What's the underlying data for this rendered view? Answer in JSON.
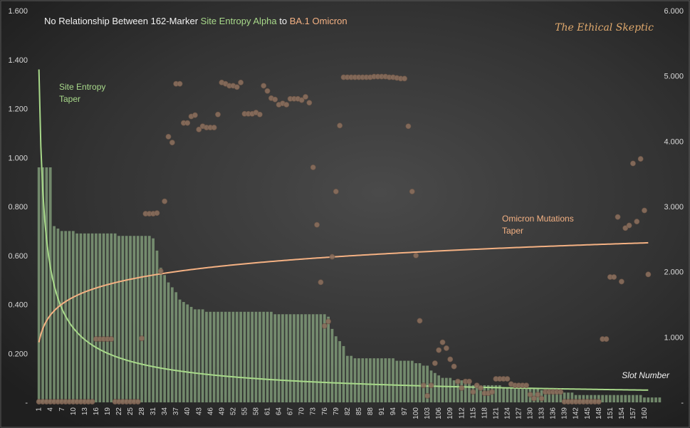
{
  "chart_data": {
    "type": "bar",
    "title_parts": {
      "prefix": "No Relationship Between 162-Marker ",
      "series_a": "Site Entropy Alpha",
      "middle": " to ",
      "series_b": "BA.1 Omicron"
    },
    "watermark": "The Ethical Skeptic",
    "xlabel": "Slot Number",
    "y_left": {
      "min": 0,
      "max": 1.6,
      "ticks": [
        "-",
        "0.200",
        "0.400",
        "0.600",
        "0.800",
        "1.000",
        "1.200",
        "1.400",
        "1.600"
      ]
    },
    "y_right": {
      "min": 0,
      "max": 6,
      "ticks": [
        "-",
        "1.000",
        "2.000",
        "3.000",
        "4.000",
        "5.000",
        "6.000"
      ]
    },
    "x_tick_labels": [
      "1",
      "4",
      "7",
      "10",
      "13",
      "16",
      "19",
      "22",
      "25",
      "28",
      "31",
      "34",
      "37",
      "40",
      "43",
      "46",
      "49",
      "52",
      "55",
      "58",
      "61",
      "64",
      "67",
      "70",
      "73",
      "76",
      "79",
      "82",
      "85",
      "88",
      "91",
      "94",
      "97",
      "100",
      "103",
      "106",
      "109",
      "112",
      "115",
      "118",
      "121",
      "124",
      "127",
      "130",
      "133",
      "136",
      "139",
      "142",
      "145",
      "148",
      "151",
      "154",
      "157",
      "160"
    ],
    "bars_site_entropy_left_axis": [
      0.96,
      0.96,
      0.96,
      0.96,
      0.72,
      0.71,
      0.7,
      0.7,
      0.7,
      0.7,
      0.69,
      0.69,
      0.69,
      0.69,
      0.69,
      0.69,
      0.69,
      0.69,
      0.69,
      0.69,
      0.69,
      0.68,
      0.68,
      0.68,
      0.68,
      0.68,
      0.68,
      0.68,
      0.68,
      0.68,
      0.67,
      0.62,
      0.55,
      0.52,
      0.49,
      0.47,
      0.45,
      0.42,
      0.41,
      0.4,
      0.39,
      0.38,
      0.38,
      0.38,
      0.37,
      0.37,
      0.37,
      0.37,
      0.37,
      0.37,
      0.37,
      0.37,
      0.37,
      0.37,
      0.37,
      0.37,
      0.37,
      0.37,
      0.37,
      0.37,
      0.37,
      0.37,
      0.36,
      0.36,
      0.36,
      0.36,
      0.36,
      0.36,
      0.36,
      0.36,
      0.36,
      0.36,
      0.36,
      0.36,
      0.36,
      0.36,
      0.35,
      0.3,
      0.27,
      0.25,
      0.23,
      0.19,
      0.19,
      0.18,
      0.18,
      0.18,
      0.18,
      0.18,
      0.18,
      0.18,
      0.18,
      0.18,
      0.18,
      0.18,
      0.17,
      0.17,
      0.17,
      0.17,
      0.17,
      0.16,
      0.16,
      0.15,
      0.15,
      0.13,
      0.12,
      0.11,
      0.1,
      0.1,
      0.1,
      0.09,
      0.09,
      0.09,
      0.08,
      0.08,
      0.07,
      0.07,
      0.07,
      0.07,
      0.07,
      0.07,
      0.07,
      0.07,
      0.06,
      0.06,
      0.06,
      0.06,
      0.06,
      0.06,
      0.06,
      0.06,
      0.06,
      0.06,
      0.05,
      0.04,
      0.04,
      0.04,
      0.04,
      0.04,
      0.04,
      0.04,
      0.04,
      0.03,
      0.03,
      0.03,
      0.03,
      0.03,
      0.03,
      0.03,
      0.03,
      0.03,
      0.03,
      0.03,
      0.03,
      0.03,
      0.03,
      0.03,
      0.03,
      0.03,
      0.03,
      0.02,
      0.02,
      0.02,
      0.02,
      0.02
    ],
    "scatter_omicron_right_axis": [
      [
        1,
        0.01
      ],
      [
        2,
        0.01
      ],
      [
        3,
        0.01
      ],
      [
        4,
        0.01
      ],
      [
        5,
        0.01
      ],
      [
        6,
        0.01
      ],
      [
        7,
        0.01
      ],
      [
        8,
        0.01
      ],
      [
        9,
        0.01
      ],
      [
        10,
        0.01
      ],
      [
        11,
        0.01
      ],
      [
        12,
        0.01
      ],
      [
        13,
        0.01
      ],
      [
        14,
        0.01
      ],
      [
        15,
        0.01
      ],
      [
        16,
        0.97
      ],
      [
        17,
        0.97
      ],
      [
        18,
        0.97
      ],
      [
        19,
        0.97
      ],
      [
        20,
        0.97
      ],
      [
        21,
        0.01
      ],
      [
        22,
        0.01
      ],
      [
        23,
        0.01
      ],
      [
        24,
        0.01
      ],
      [
        25,
        0.01
      ],
      [
        26,
        0.01
      ],
      [
        27,
        0.01
      ],
      [
        28,
        0.98
      ],
      [
        29,
        2.89
      ],
      [
        30,
        2.89
      ],
      [
        31,
        2.89
      ],
      [
        32,
        2.9
      ],
      [
        33,
        2.01
      ],
      [
        34,
        3.08
      ],
      [
        35,
        4.07
      ],
      [
        36,
        3.98
      ],
      [
        37,
        4.88
      ],
      [
        38,
        4.88
      ],
      [
        39,
        4.28
      ],
      [
        40,
        4.28
      ],
      [
        41,
        4.38
      ],
      [
        42,
        4.4
      ],
      [
        43,
        4.18
      ],
      [
        44,
        4.23
      ],
      [
        45,
        4.21
      ],
      [
        46,
        4.21
      ],
      [
        47,
        4.21
      ],
      [
        48,
        4.41
      ],
      [
        49,
        4.9
      ],
      [
        50,
        4.88
      ],
      [
        51,
        4.85
      ],
      [
        52,
        4.85
      ],
      [
        53,
        4.83
      ],
      [
        54,
        4.9
      ],
      [
        55,
        4.42
      ],
      [
        56,
        4.42
      ],
      [
        57,
        4.42
      ],
      [
        58,
        4.44
      ],
      [
        59,
        4.41
      ],
      [
        60,
        4.85
      ],
      [
        61,
        4.77
      ],
      [
        62,
        4.66
      ],
      [
        63,
        4.64
      ],
      [
        64,
        4.56
      ],
      [
        65,
        4.58
      ],
      [
        66,
        4.56
      ],
      [
        67,
        4.65
      ],
      [
        68,
        4.65
      ],
      [
        69,
        4.65
      ],
      [
        70,
        4.63
      ],
      [
        71,
        4.68
      ],
      [
        72,
        4.59
      ],
      [
        73,
        3.6
      ],
      [
        74,
        2.72
      ],
      [
        75,
        1.84
      ],
      [
        76,
        1.17
      ],
      [
        77,
        1.24
      ],
      [
        78,
        2.23
      ],
      [
        79,
        3.23
      ],
      [
        80,
        4.24
      ],
      [
        81,
        4.98
      ],
      [
        82,
        4.98
      ],
      [
        83,
        4.98
      ],
      [
        84,
        4.98
      ],
      [
        85,
        4.98
      ],
      [
        86,
        4.98
      ],
      [
        87,
        4.98
      ],
      [
        88,
        4.98
      ],
      [
        89,
        4.99
      ],
      [
        90,
        4.99
      ],
      [
        91,
        4.99
      ],
      [
        92,
        4.99
      ],
      [
        93,
        4.98
      ],
      [
        94,
        4.98
      ],
      [
        95,
        4.97
      ],
      [
        96,
        4.96
      ],
      [
        97,
        4.96
      ],
      [
        98,
        4.23
      ],
      [
        99,
        3.23
      ],
      [
        100,
        2.25
      ],
      [
        101,
        1.25
      ],
      [
        102,
        0.26
      ],
      [
        103,
        0.1
      ],
      [
        104,
        0.26
      ],
      [
        105,
        0.6
      ],
      [
        106,
        0.8
      ],
      [
        107,
        0.92
      ],
      [
        108,
        0.83
      ],
      [
        109,
        0.66
      ],
      [
        110,
        0.55
      ],
      [
        111,
        0.32
      ],
      [
        112,
        0.22
      ],
      [
        113,
        0.32
      ],
      [
        114,
        0.32
      ],
      [
        115,
        0.16
      ],
      [
        116,
        0.26
      ],
      [
        117,
        0.22
      ],
      [
        118,
        0.14
      ],
      [
        119,
        0.14
      ],
      [
        120,
        0.16
      ],
      [
        121,
        0.36
      ],
      [
        122,
        0.36
      ],
      [
        123,
        0.36
      ],
      [
        124,
        0.36
      ],
      [
        125,
        0.28
      ],
      [
        126,
        0.26
      ],
      [
        127,
        0.26
      ],
      [
        128,
        0.26
      ],
      [
        129,
        0.26
      ],
      [
        130,
        0.12
      ],
      [
        131,
        0.06
      ],
      [
        132,
        0.12
      ],
      [
        133,
        0.06
      ],
      [
        134,
        0.16
      ],
      [
        135,
        0.16
      ],
      [
        136,
        0.16
      ],
      [
        137,
        0.16
      ],
      [
        138,
        0.16
      ],
      [
        139,
        0.01
      ],
      [
        140,
        0.01
      ],
      [
        141,
        0.01
      ],
      [
        142,
        0.01
      ],
      [
        143,
        0.01
      ],
      [
        144,
        0.01
      ],
      [
        145,
        0.01
      ],
      [
        146,
        0.01
      ],
      [
        147,
        0.01
      ],
      [
        148,
        0.01
      ],
      [
        149,
        0.97
      ],
      [
        150,
        0.97
      ],
      [
        151,
        1.92
      ],
      [
        152,
        1.92
      ],
      [
        153,
        2.84
      ],
      [
        154,
        1.85
      ],
      [
        155,
        2.67
      ],
      [
        156,
        2.71
      ],
      [
        157,
        3.66
      ],
      [
        158,
        2.77
      ],
      [
        159,
        3.73
      ],
      [
        160,
        2.94
      ],
      [
        161,
        1.96
      ]
    ],
    "taper_curves": [
      {
        "name": "Site Entropy\nTaper",
        "axis": "left",
        "color": "#a8d98a",
        "formula": "1.36*x^-0.65",
        "from": 1,
        "to": 161
      },
      {
        "name": "Omicron Mutations\nTaper",
        "axis": "right",
        "color": "#f4b183",
        "formula": "0.92+0.30*ln(x)",
        "from": 1,
        "to": 161
      }
    ],
    "colors": {
      "bars": "#8aa882",
      "points": "#8a6e5c",
      "site_entropy": "#a8d98a",
      "omicron": "#f4b183",
      "watermark": "#e0a96d",
      "text": "#d8d8d8"
    }
  }
}
